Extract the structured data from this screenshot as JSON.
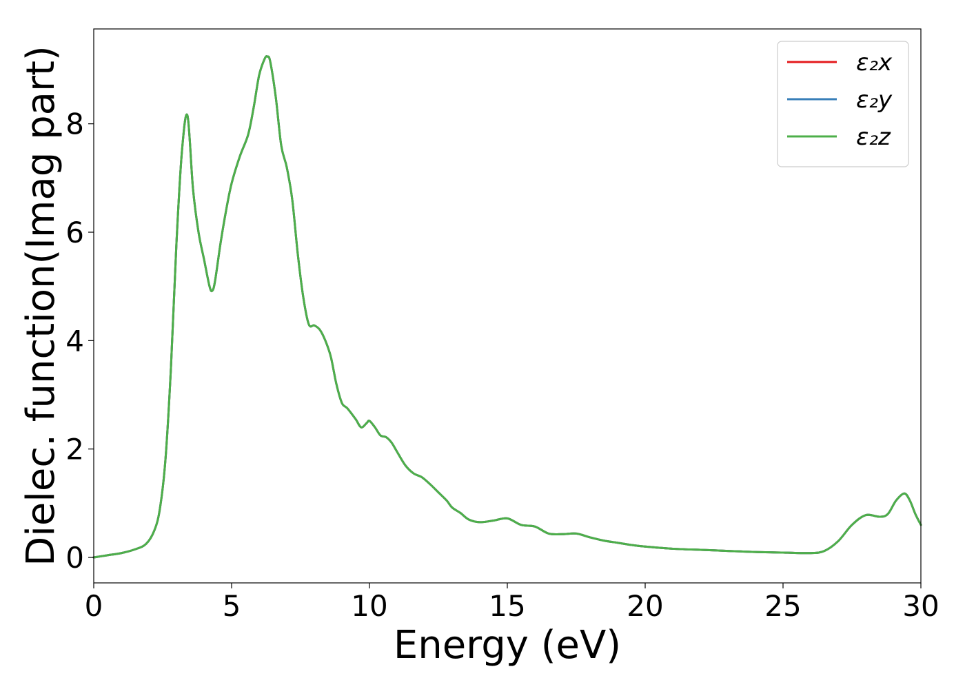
{
  "chart_data": {
    "type": "line",
    "title": "",
    "xlabel": "Energy (eV)",
    "ylabel": "Dielec. function(Imag part)",
    "xlim": [
      0,
      30
    ],
    "ylim": [
      -0.47,
      9.75
    ],
    "xticks": [
      0,
      5,
      10,
      15,
      20,
      25,
      30
    ],
    "xtick_labels": [
      "0",
      "5",
      "10",
      "15",
      "20",
      "25",
      "30"
    ],
    "yticks": [
      0,
      2,
      4,
      6,
      8
    ],
    "ytick_labels": [
      "0",
      "2",
      "4",
      "6",
      "8"
    ],
    "grid": false,
    "legend_position": "top-right",
    "x": [
      0,
      0.5,
      1,
      1.5,
      1.9,
      2.2,
      2.4,
      2.6,
      2.8,
      3.0,
      3.2,
      3.4,
      3.6,
      3.8,
      4.0,
      4.2,
      4.3,
      4.4,
      4.6,
      4.8,
      5.0,
      5.3,
      5.6,
      5.8,
      6.0,
      6.2,
      6.3,
      6.4,
      6.6,
      6.8,
      7.0,
      7.2,
      7.4,
      7.6,
      7.8,
      8.0,
      8.2,
      8.4,
      8.6,
      8.8,
      9.0,
      9.2,
      9.5,
      9.7,
      9.9,
      10.0,
      10.2,
      10.4,
      10.6,
      10.8,
      11.0,
      11.3,
      11.6,
      11.9,
      12.2,
      12.5,
      12.8,
      13.0,
      13.3,
      13.6,
      14.0,
      14.5,
      15.0,
      15.5,
      16.0,
      16.5,
      17.0,
      17.5,
      18.0,
      18.5,
      19.0,
      19.5,
      20.0,
      21.0,
      22.0,
      23.0,
      24.0,
      25.0,
      26.0,
      26.5,
      27.0,
      27.5,
      28.0,
      28.5,
      28.8,
      29.1,
      29.4,
      29.6,
      29.8,
      30.0
    ],
    "series": [
      {
        "name": "ε₂x",
        "color": "#e41a1c",
        "values": [
          0.0,
          0.04,
          0.08,
          0.15,
          0.25,
          0.5,
          0.9,
          1.8,
          3.5,
          5.8,
          7.5,
          8.15,
          6.8,
          6.0,
          5.5,
          5.0,
          4.92,
          5.1,
          5.8,
          6.4,
          6.9,
          7.4,
          7.8,
          8.3,
          8.9,
          9.2,
          9.24,
          9.15,
          8.5,
          7.6,
          7.2,
          6.6,
          5.6,
          4.8,
          4.3,
          4.28,
          4.2,
          4.0,
          3.7,
          3.2,
          2.85,
          2.75,
          2.55,
          2.4,
          2.48,
          2.52,
          2.4,
          2.25,
          2.22,
          2.12,
          1.95,
          1.7,
          1.55,
          1.48,
          1.35,
          1.2,
          1.05,
          0.92,
          0.82,
          0.7,
          0.65,
          0.68,
          0.72,
          0.6,
          0.57,
          0.44,
          0.43,
          0.44,
          0.37,
          0.31,
          0.27,
          0.23,
          0.2,
          0.16,
          0.14,
          0.12,
          0.1,
          0.09,
          0.08,
          0.12,
          0.3,
          0.6,
          0.78,
          0.75,
          0.8,
          1.05,
          1.18,
          1.05,
          0.8,
          0.6
        ]
      },
      {
        "name": "ε₂y",
        "color": "#377eb8",
        "values": [
          0.0,
          0.04,
          0.08,
          0.15,
          0.25,
          0.5,
          0.9,
          1.8,
          3.5,
          5.8,
          7.5,
          8.15,
          6.8,
          6.0,
          5.5,
          5.0,
          4.92,
          5.1,
          5.8,
          6.4,
          6.9,
          7.4,
          7.8,
          8.3,
          8.9,
          9.2,
          9.24,
          9.15,
          8.5,
          7.6,
          7.2,
          6.6,
          5.6,
          4.8,
          4.3,
          4.28,
          4.2,
          4.0,
          3.7,
          3.2,
          2.85,
          2.75,
          2.55,
          2.4,
          2.48,
          2.52,
          2.4,
          2.25,
          2.22,
          2.12,
          1.95,
          1.7,
          1.55,
          1.48,
          1.35,
          1.2,
          1.05,
          0.92,
          0.82,
          0.7,
          0.65,
          0.68,
          0.72,
          0.6,
          0.57,
          0.44,
          0.43,
          0.44,
          0.37,
          0.31,
          0.27,
          0.23,
          0.2,
          0.16,
          0.14,
          0.12,
          0.1,
          0.09,
          0.08,
          0.12,
          0.3,
          0.6,
          0.78,
          0.75,
          0.8,
          1.05,
          1.18,
          1.05,
          0.8,
          0.6
        ]
      },
      {
        "name": "ε₂z",
        "color": "#4daf4a",
        "values": [
          0.0,
          0.04,
          0.08,
          0.15,
          0.25,
          0.5,
          0.9,
          1.8,
          3.5,
          5.8,
          7.5,
          8.15,
          6.8,
          6.0,
          5.5,
          5.0,
          4.92,
          5.1,
          5.8,
          6.4,
          6.9,
          7.4,
          7.8,
          8.3,
          8.9,
          9.2,
          9.24,
          9.15,
          8.5,
          7.6,
          7.2,
          6.6,
          5.6,
          4.8,
          4.3,
          4.28,
          4.2,
          4.0,
          3.7,
          3.2,
          2.85,
          2.75,
          2.55,
          2.4,
          2.48,
          2.52,
          2.4,
          2.25,
          2.22,
          2.12,
          1.95,
          1.7,
          1.55,
          1.48,
          1.35,
          1.2,
          1.05,
          0.92,
          0.82,
          0.7,
          0.65,
          0.68,
          0.72,
          0.6,
          0.57,
          0.44,
          0.43,
          0.44,
          0.37,
          0.31,
          0.27,
          0.23,
          0.2,
          0.16,
          0.14,
          0.12,
          0.1,
          0.09,
          0.08,
          0.12,
          0.3,
          0.6,
          0.78,
          0.75,
          0.8,
          1.05,
          1.18,
          1.05,
          0.8,
          0.6
        ]
      }
    ]
  }
}
